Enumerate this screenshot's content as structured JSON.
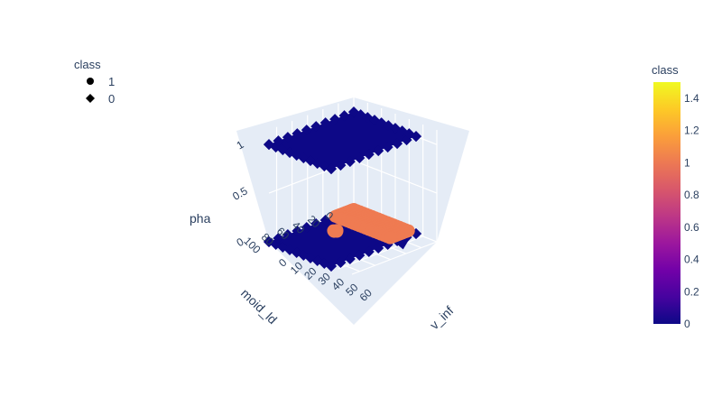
{
  "chart_data": {
    "type": "scatter3d",
    "legend": {
      "title": "class",
      "placement": "top-left",
      "items": [
        {
          "label": "1",
          "symbol": "circle"
        },
        {
          "label": "0",
          "symbol": "diamond"
        }
      ]
    },
    "axes": {
      "x": {
        "title": "v_inf",
        "ticks": [
          "0",
          "10",
          "20",
          "30",
          "40",
          "50",
          "60"
        ]
      },
      "y": {
        "title": "moid_ld",
        "ticks": [
          "0",
          "20",
          "40",
          "60",
          "80",
          "100"
        ]
      },
      "z": {
        "title": "pha",
        "ticks": [
          "0",
          "0.5",
          "1"
        ]
      }
    },
    "colorbar": {
      "title": "class",
      "range": [
        0,
        1.5
      ],
      "ticks": [
        "0",
        "0.2",
        "0.4",
        "0.6",
        "0.8",
        "1",
        "1.2",
        "1.4"
      ],
      "colorscale": [
        "#0d0887",
        "#46039f",
        "#7201a8",
        "#9c179e",
        "#bd3786",
        "#d8576b",
        "#ed7953",
        "#fb9f3a",
        "#fdca26",
        "#f0f921"
      ]
    },
    "series": [
      {
        "name": "1",
        "marker": "circle",
        "color": "#ef7b52",
        "pha": 0,
        "clusters": [
          {
            "v_inf": [
              0,
              40
            ],
            "moid_ld": [
              0,
              25
            ]
          },
          {
            "v_inf": [
              35,
              45
            ],
            "moid_ld": [
              20,
              25
            ]
          }
        ]
      },
      {
        "name": "0",
        "marker": "diamond",
        "color": "#0d0887",
        "clusters": [
          {
            "pha": 1,
            "v_inf": [
              0,
              45
            ],
            "moid_ld": [
              0,
              110
            ]
          },
          {
            "pha": 0,
            "v_inf": [
              0,
              45
            ],
            "moid_ld": [
              0,
              110
            ]
          },
          {
            "pha": 0,
            "v_inf": [
              45,
              50
            ],
            "moid_ld": [
              20,
              30
            ]
          }
        ]
      }
    ],
    "grid": true
  }
}
